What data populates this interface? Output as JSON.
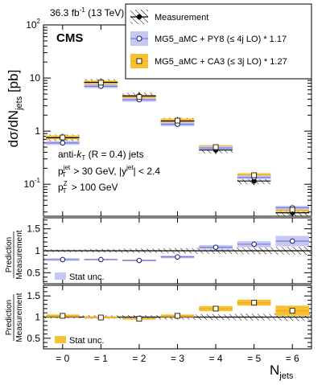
{
  "header": {
    "lumi": "36.3 fb",
    "lumi_exp": "-1",
    "energy": " (13 TeV)",
    "experiment": "CMS"
  },
  "legend": {
    "measurement": "Measurement",
    "mg5_py8": "MG5_aMC + PY8 (≤ 4j LO) * 1.17",
    "mg5_ca3": "MG5_aMC + CA3 (≤ 3j LO) * 1.27"
  },
  "annotation": {
    "line1_pre": "anti-",
    "line1_k": "k",
    "line1_sub": "T",
    "line1_post": " (R = 0.4) jets",
    "line2_p": "p",
    "line2_sub": "T",
    "line2_sup": "jet",
    "line2_mid": " > 30 GeV, |y",
    "line2_sup2": "jet",
    "line2_end": "| < 2.4",
    "line3_p": "p",
    "line3_sub": "T",
    "line3_sup": "Z",
    "line3_end": " >  100 GeV"
  },
  "ylabel_main": {
    "d": "dσ/dN",
    "sub": "jets",
    "unit": " [pb]"
  },
  "ratio_ylabel": {
    "num": "Prediction",
    "den": "Measurement"
  },
  "stat_labels": {
    "panel1": "Stat unc.",
    "panel2": "Stat unc."
  },
  "xlabel": {
    "n": "N",
    "sub": "jets"
  },
  "colors": {
    "py8": "#7b7bd9",
    "py8_band": "#c4c8f2",
    "ca3": "#f2a818",
    "ca3_band": "#f7c132",
    "meas": "#000000"
  },
  "chart_data": [
    {
      "type": "scatter",
      "log_y": true,
      "categories": [
        "= 0",
        "= 1",
        "= 2",
        "= 3",
        "= 4",
        "= 5",
        "= 6"
      ],
      "ylim": [
        0.025,
        100
      ],
      "yticks": [
        {
          "v": 0.1,
          "b": "10",
          "e": "-1"
        },
        {
          "v": 1,
          "b": "1",
          "e": ""
        },
        {
          "v": 10,
          "b": "10",
          "e": ""
        },
        {
          "v": 100,
          "b": "10",
          "e": "2"
        }
      ],
      "series": [
        {
          "name": "Measurement",
          "values": [
            0.75,
            8.3,
            4.6,
            1.55,
            0.44,
            0.115,
            0.029
          ]
        },
        {
          "name": "MG5_aMC + PY8 (≤ 4j LO) * 1.17",
          "values": [
            0.6,
            7.0,
            3.9,
            1.35,
            0.48,
            0.135,
            0.036
          ]
        },
        {
          "name": "MG5_aMC + CA3 (≤ 3j LO) * 1.27",
          "values": [
            0.76,
            8.2,
            4.4,
            1.58,
            0.5,
            0.148,
            0.033
          ]
        }
      ]
    },
    {
      "type": "scatter",
      "categories": [
        "= 0",
        "= 1",
        "= 2",
        "= 3",
        "= 4",
        "= 5",
        "= 6"
      ],
      "ylim": [
        0.25,
        1.75
      ],
      "yticks": [
        0.5,
        1,
        1.5
      ],
      "ylabel": "Prediction / Measurement",
      "series": [
        {
          "name": "MG5_aMC + PY8 (≤ 4j LO) * 1.17",
          "values": [
            0.8,
            0.8,
            0.78,
            0.86,
            1.08,
            1.15,
            1.22
          ]
        }
      ],
      "stat_unc": [
        0.03,
        0.02,
        0.02,
        0.03,
        0.05,
        0.07,
        0.12
      ]
    },
    {
      "type": "scatter",
      "categories": [
        "= 0",
        "= 1",
        "= 2",
        "= 3",
        "= 4",
        "= 5",
        "= 6"
      ],
      "ylim": [
        0.25,
        1.75
      ],
      "yticks": [
        0.5,
        1,
        1.5
      ],
      "ylabel": "Prediction / Measurement",
      "series": [
        {
          "name": "MG5_aMC + CA3 (≤ 3j LO) * 1.27",
          "values": [
            1.03,
            0.99,
            0.96,
            1.03,
            1.2,
            1.34,
            1.15
          ]
        }
      ],
      "stat_unc": [
        0.03,
        0.02,
        0.02,
        0.03,
        0.06,
        0.07,
        0.12
      ]
    }
  ]
}
